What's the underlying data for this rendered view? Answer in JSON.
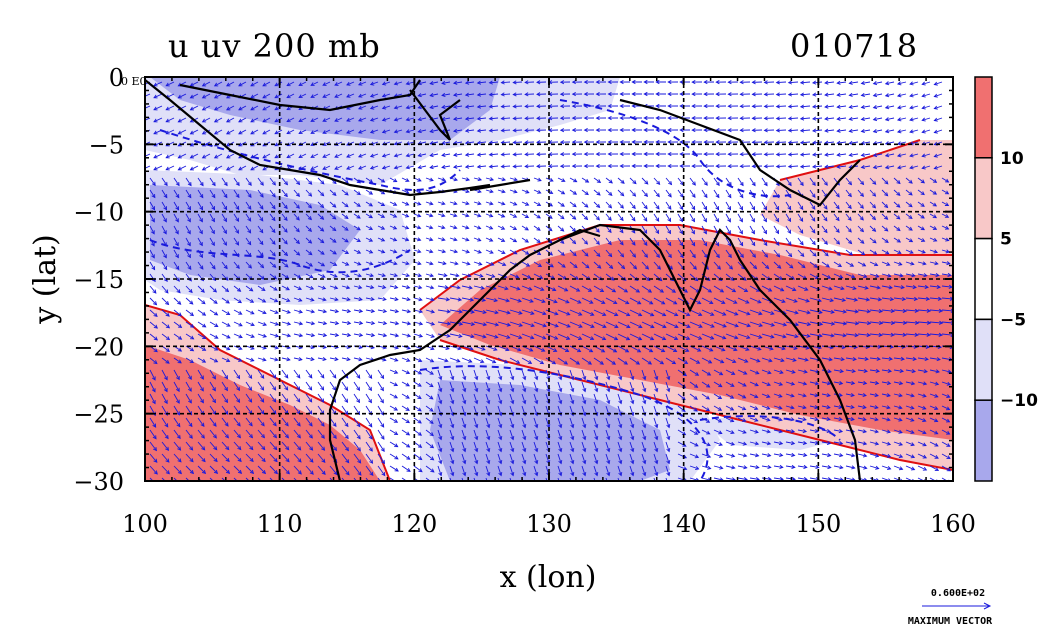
{
  "chart_data": {
    "type": "heatmap",
    "title_left": "u uv 200 mb",
    "title_right": "010718",
    "xlabel": "x (lon)",
    "ylabel": "y (lat)",
    "xlim": [
      100,
      160
    ],
    "ylim": [
      -30,
      0
    ],
    "x_ticks": [
      100,
      110,
      120,
      130,
      140,
      150,
      160
    ],
    "x_tick_labels": [
      "100",
      "110",
      "120",
      "130",
      "140",
      "150",
      "160"
    ],
    "y_ticks": [
      0,
      -5,
      -10,
      -15,
      -20,
      -25,
      -30
    ],
    "y_tick_labels": [
      "0",
      "−5",
      "−10",
      "−15",
      "−20",
      "−25",
      "−30"
    ],
    "grid": true,
    "colorbar": {
      "placement": "right",
      "levels": [
        10,
        5,
        -5,
        -10
      ],
      "labels": [
        "10",
        "5",
        "−5",
        "−10"
      ],
      "colors": [
        "#f07070",
        "#f8c8c8",
        "#ffffff",
        "#e0e0f8",
        "#a8a8ec"
      ]
    },
    "vector_key": {
      "value_label": "0.600E+02",
      "caption": "MAXIMUM VECTOR",
      "value": 60
    },
    "colors": {
      "positive_strong": "#f07070",
      "positive_weak": "#f8c8c8",
      "negative_weak": "#e0e0f8",
      "negative_strong": "#a8a8ec",
      "vectors": "#1a1adc",
      "positive_contour": "#e01010",
      "negative_contour": "#1a1adc",
      "coastline": "#000000"
    },
    "region_label": "0 E0"
  }
}
